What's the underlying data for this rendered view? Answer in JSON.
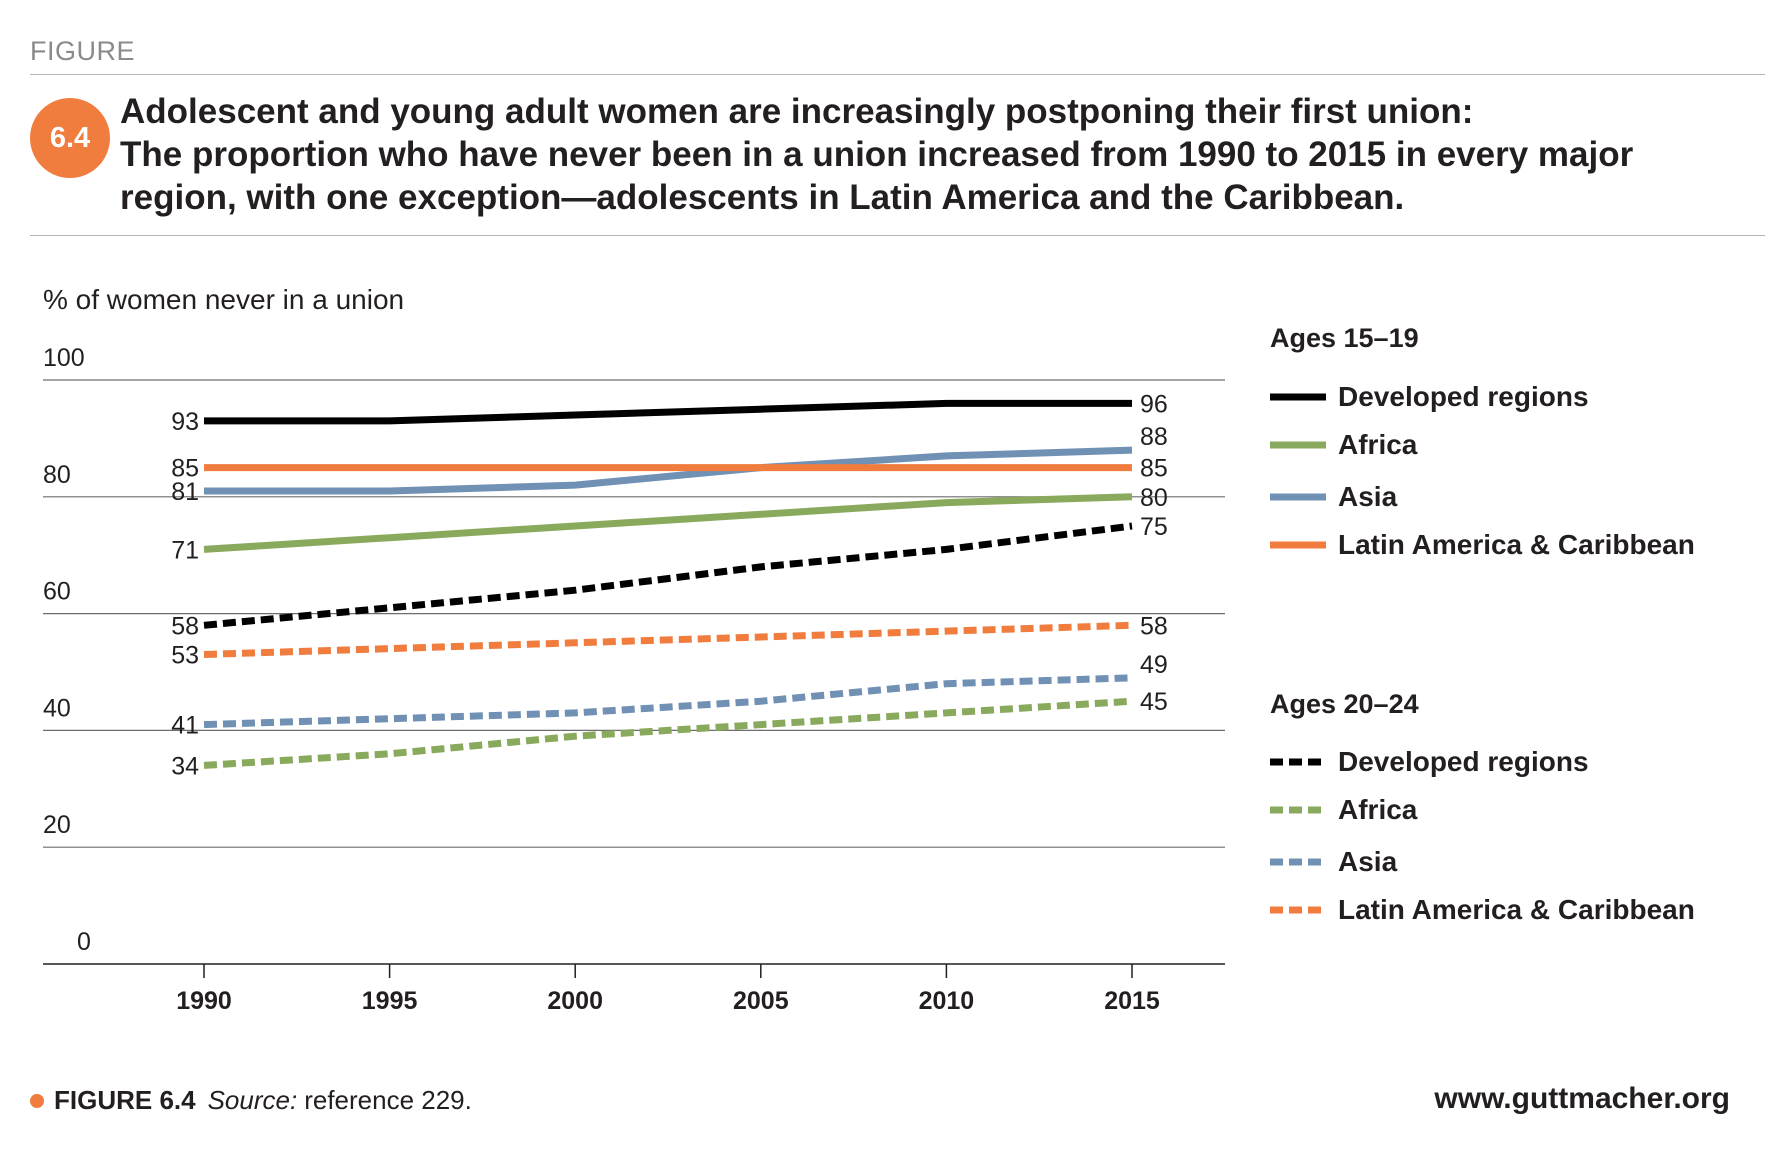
{
  "header": {
    "figure_label": "FIGURE",
    "badge": "6.4",
    "title_lines": [
      "Adolescent and young adult women are increasingly postponing their first union:",
      "The proportion who have never been in a union increased from 1990 to 2015 in every major",
      "region, with one exception—adolescents in Latin America and the Caribbean."
    ]
  },
  "chart_data": {
    "type": "line",
    "ylabel": "% of women never in a union",
    "ylim": [
      0,
      100
    ],
    "yticks": [
      0,
      20,
      40,
      60,
      80,
      100
    ],
    "x": [
      1990,
      1995,
      2000,
      2005,
      2010,
      2015
    ],
    "grid": true,
    "colors": {
      "developed": "#000000",
      "africa": "#89a95c",
      "asia": "#7090b4",
      "latam": "#f07c3e"
    },
    "legend_groups": [
      {
        "title": "Ages 15–19",
        "style": "solid"
      },
      {
        "title": "Ages 20–24",
        "style": "dashed"
      }
    ],
    "series": [
      {
        "name": "Developed regions",
        "group": "Ages 15–19",
        "style": "solid",
        "color_key": "developed",
        "values": [
          93,
          93,
          94,
          95,
          96,
          96
        ],
        "start_label": "93",
        "end_label": "96"
      },
      {
        "name": "Africa",
        "group": "Ages 15–19",
        "style": "solid",
        "color_key": "africa",
        "values": [
          71,
          73,
          75,
          77,
          79,
          80
        ],
        "start_label": "71",
        "end_label": "80"
      },
      {
        "name": "Asia",
        "group": "Ages 15–19",
        "style": "solid",
        "color_key": "asia",
        "values": [
          81,
          81,
          82,
          85,
          87,
          88
        ],
        "start_label": "81",
        "end_label": "88"
      },
      {
        "name": "Latin America & Caribbean",
        "group": "Ages 15–19",
        "style": "solid",
        "color_key": "latam",
        "values": [
          85,
          85,
          85,
          85,
          85,
          85
        ],
        "start_label": "85",
        "end_label": "85"
      },
      {
        "name": "Developed regions",
        "group": "Ages 20–24",
        "style": "dashed",
        "color_key": "developed",
        "values": [
          58,
          61,
          64,
          68,
          71,
          75
        ],
        "start_label": "58",
        "end_label": "75"
      },
      {
        "name": "Africa",
        "group": "Ages 20–24",
        "style": "dashed",
        "color_key": "africa",
        "values": [
          34,
          36,
          39,
          41,
          43,
          45
        ],
        "start_label": "34",
        "end_label": "45"
      },
      {
        "name": "Asia",
        "group": "Ages 20–24",
        "style": "dashed",
        "color_key": "asia",
        "values": [
          41,
          42,
          43,
          45,
          48,
          49
        ],
        "start_label": "41",
        "end_label": "49"
      },
      {
        "name": "Latin America & Caribbean",
        "group": "Ages 20–24",
        "style": "dashed",
        "color_key": "latam",
        "values": [
          53,
          54,
          55,
          56,
          57,
          58
        ],
        "start_label": "53",
        "end_label": "58"
      }
    ]
  },
  "footer": {
    "figure_ref": "FIGURE 6.4",
    "source_label": "Source:",
    "source_text": "reference 229.",
    "website": "www.guttmacher.org"
  }
}
